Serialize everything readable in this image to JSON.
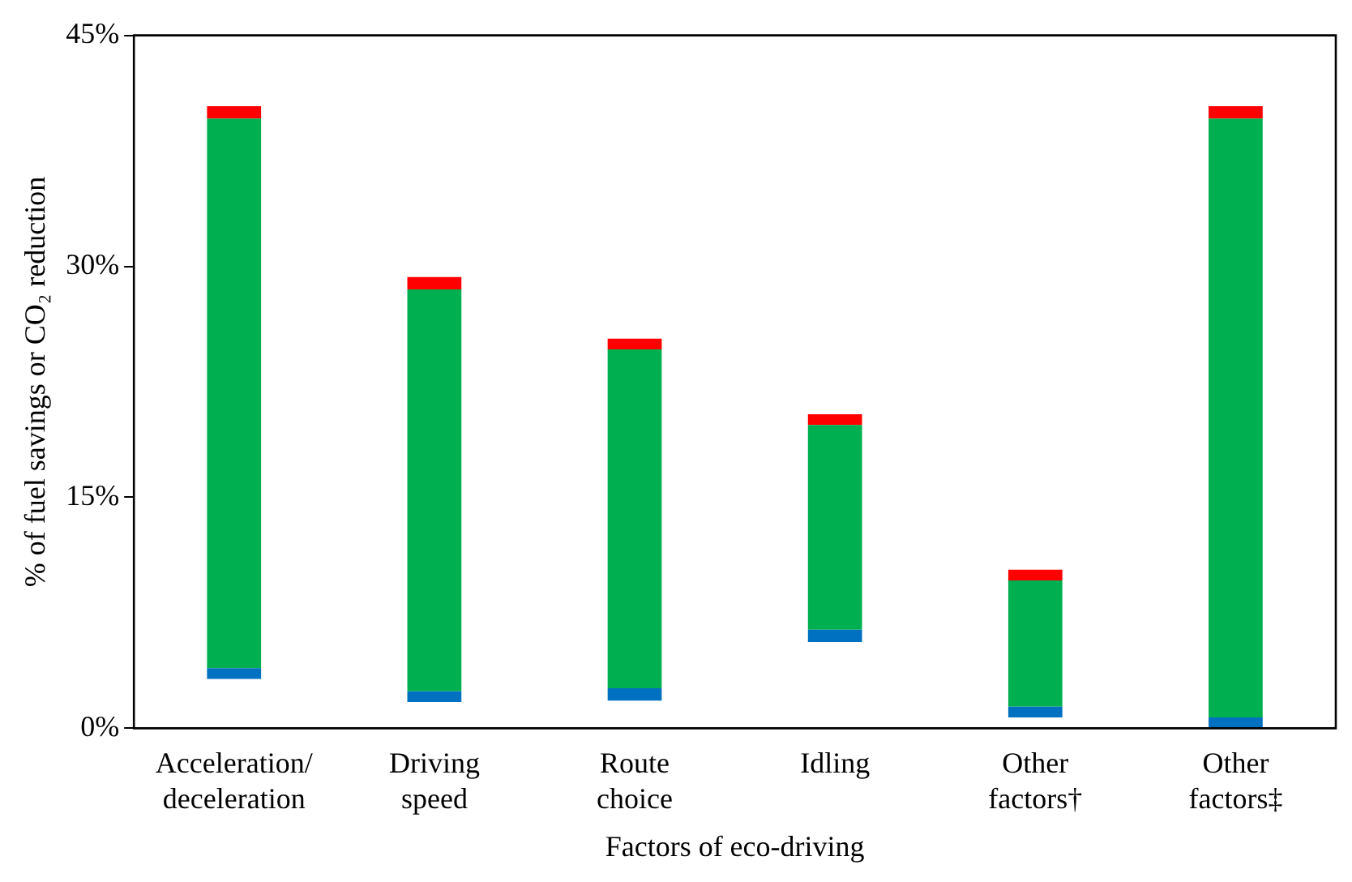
{
  "chart_data": {
    "type": "bar",
    "xlabel": "Factors of eco-driving",
    "ylabel": "% of fuel savings or CO₂ reduction",
    "categories": [
      "Acceleration/\ndeceleration",
      "Driving\nspeed",
      "Route\nchoice",
      "Idling",
      "Other\nfactors†",
      "Other\nfactors‡"
    ],
    "series": [
      {
        "color": "#0070c0",
        "base": [
          3.2,
          1.7,
          1.8,
          5.6,
          0.7,
          0
        ],
        "values": [
          0.7,
          0.7,
          0.8,
          0.8,
          0.7,
          0.7
        ]
      },
      {
        "color": "#00b050",
        "base": [
          3.9,
          2.4,
          2.6,
          6.4,
          1.4,
          0.7
        ],
        "values": [
          35.7,
          26.1,
          22.0,
          13.3,
          8.2,
          38.9
        ]
      },
      {
        "color": "#ff0000",
        "base": [
          39.6,
          28.5,
          24.6,
          19.7,
          9.6,
          39.6
        ],
        "values": [
          0.8,
          0.8,
          0.7,
          0.7,
          0.7,
          0.8
        ]
      }
    ],
    "ylim": [
      0,
      45
    ],
    "yticks": [
      {
        "value": 0,
        "label": "0%"
      },
      {
        "value": 15,
        "label": "15%"
      },
      {
        "value": 30,
        "label": "30%"
      },
      {
        "value": 45,
        "label": "45%"
      }
    ],
    "grid": false,
    "legend": false
  }
}
